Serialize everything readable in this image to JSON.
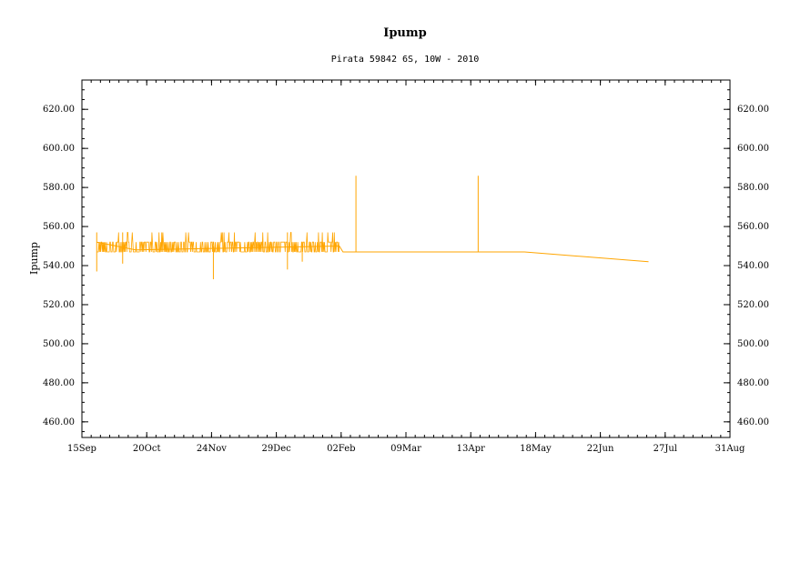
{
  "chart_data": {
    "type": "line",
    "title": "Ipump",
    "subtitle": "Pirata 59842 6S, 10W - 2010",
    "xlabel": "",
    "ylabel": "Ipump",
    "color": "#ffa500",
    "x_ticks": [
      "15Sep",
      "20Oct",
      "24Nov",
      "29Dec",
      "02Feb",
      "09Mar",
      "13Apr",
      "18May",
      "22Jun",
      "27Jul",
      "31Aug"
    ],
    "y_ticks": [
      "460.00",
      "480.00",
      "500.00",
      "520.00",
      "540.00",
      "560.00",
      "580.00",
      "600.00",
      "620.00"
    ],
    "ylim": [
      452,
      635
    ],
    "xlim": [
      "2009-09-15",
      "2010-08-31"
    ],
    "grid": false,
    "series": [
      {
        "segments": [
          {
            "x": "2009-09-23",
            "y": 552
          },
          {
            "x": "2009-10-14",
            "y": 548
          },
          {
            "x": "2010-02-01",
            "y": 550
          },
          {
            "x": "2010-02-03",
            "y": 547
          },
          {
            "x": "2010-05-12",
            "y": 547
          },
          {
            "x": "2010-07-18",
            "y": 542
          }
        ],
        "spikes": [
          {
            "x": "2009-09-23",
            "y_min": 537,
            "y_max": 557
          },
          {
            "x": "2009-10-07",
            "y_min": 541,
            "y_max": 557
          },
          {
            "x": "2009-11-25",
            "y_min": 533,
            "y_max": 550
          },
          {
            "x": "2010-01-04",
            "y_min": 538,
            "y_max": 557
          },
          {
            "x": "2010-01-12",
            "y_min": 542,
            "y_max": 552
          },
          {
            "x": "2010-02-10",
            "y_min": 547,
            "y_max": 586
          },
          {
            "x": "2010-04-17",
            "y_min": 547,
            "y_max": 586
          }
        ],
        "noisy_range": {
          "start": "2009-09-23",
          "end": "2010-02-01",
          "low": 547,
          "high": 552,
          "peaks": 557
        }
      }
    ]
  }
}
